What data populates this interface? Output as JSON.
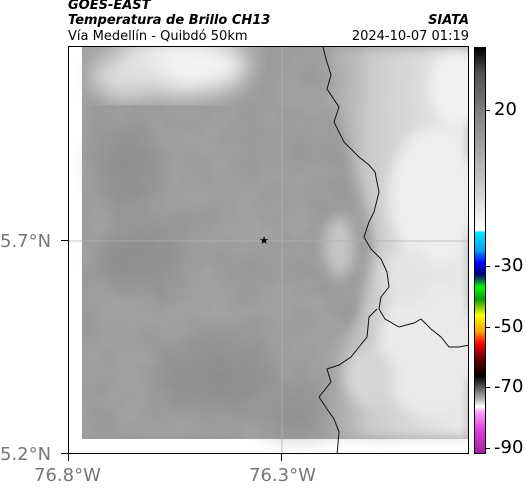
{
  "header": {
    "satellite": "GOES-EAST",
    "product": "Temperatura de Brillo CH13",
    "region": "Vía Medellín - Quibdó 50km",
    "agency": "SIATA",
    "datetime": "2024-10-07 01:19"
  },
  "map": {
    "lat_labels": [
      "5.7°N",
      "5.2°N"
    ],
    "lon_labels": [
      "76.8°W",
      "76.3°W"
    ],
    "marker": "star",
    "colors": {
      "base_gray": "#969696",
      "cold_top_white": "#f2f2f2",
      "border_line": "#000000",
      "gridline": "#b4b4b4"
    }
  },
  "colorbar": {
    "labels": [
      "20",
      "-30",
      "-50",
      "-70",
      "-90"
    ],
    "units_hint": "°C"
  }
}
